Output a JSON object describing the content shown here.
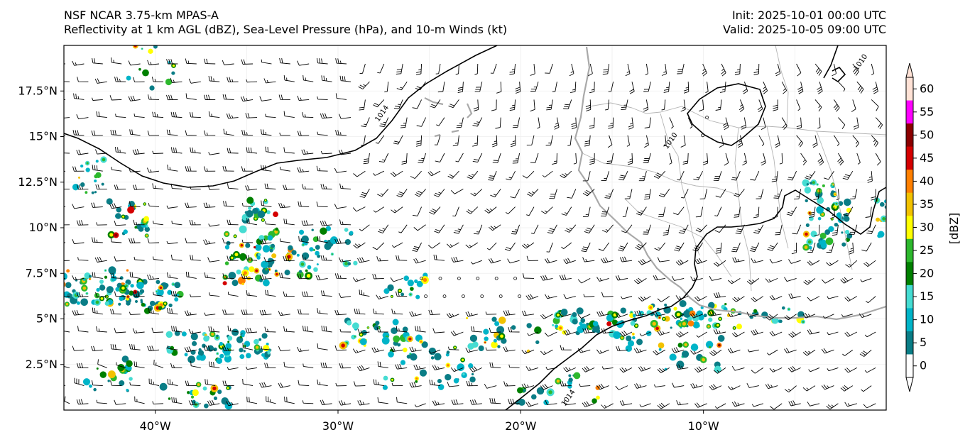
{
  "header": {
    "line1": "NSF NCAR 3.75-km MPAS-A",
    "line2": "Reflectivity at 1 km AGL (dBZ), Sea-Level Pressure (hPa), and 10-m Winds (kt)",
    "init": "Init: 2025-10-01 00:00 UTC",
    "valid": "Valid: 2025-10-05 09:00 UTC"
  },
  "map": {
    "extent": {
      "lon": [
        -45,
        0
      ],
      "lat": [
        0,
        20
      ]
    },
    "lat_ticks": [
      {
        "value": 17.5,
        "label": "17.5°N"
      },
      {
        "value": 15,
        "label": "15°N"
      },
      {
        "value": 12.5,
        "label": "12.5°N"
      },
      {
        "value": 10,
        "label": "10°N"
      },
      {
        "value": 7.5,
        "label": "7.5°N"
      },
      {
        "value": 5,
        "label": "5°N"
      },
      {
        "value": 2.5,
        "label": "2.5°N"
      }
    ],
    "lon_ticks": [
      {
        "value": -40,
        "label": "40°W"
      },
      {
        "value": -30,
        "label": "30°W"
      },
      {
        "value": -20,
        "label": "20°W"
      },
      {
        "value": -10,
        "label": "10°W"
      }
    ],
    "isobar_labels": [
      {
        "text": "1014",
        "lon": -27.5,
        "lat": 16.2
      },
      {
        "text": "1010",
        "lon": -11.7,
        "lat": 14.7
      },
      {
        "text": "1010",
        "lon": -1.3,
        "lat": 19.0
      },
      {
        "text": "1014",
        "lon": -17.3,
        "lat": 0.6
      }
    ]
  },
  "colorbar": {
    "label": "[dBZ]",
    "ticks": [
      "0",
      "5",
      "10",
      "15",
      "20",
      "25",
      "30",
      "35",
      "40",
      "45",
      "50",
      "55",
      "60"
    ],
    "colors": [
      "#ffffff",
      "#0a7d86",
      "#00b4c8",
      "#45dcd2",
      "#008000",
      "#2db82d",
      "#ffff00",
      "#f2c200",
      "#ff8000",
      "#d40000",
      "#8b0000",
      "#ff00ff",
      "#ffe2d6"
    ]
  },
  "colors": {
    "coast": "#a9a9a9",
    "border": "#b4b4b4",
    "isobar": "#000000",
    "barb": "#000000"
  }
}
